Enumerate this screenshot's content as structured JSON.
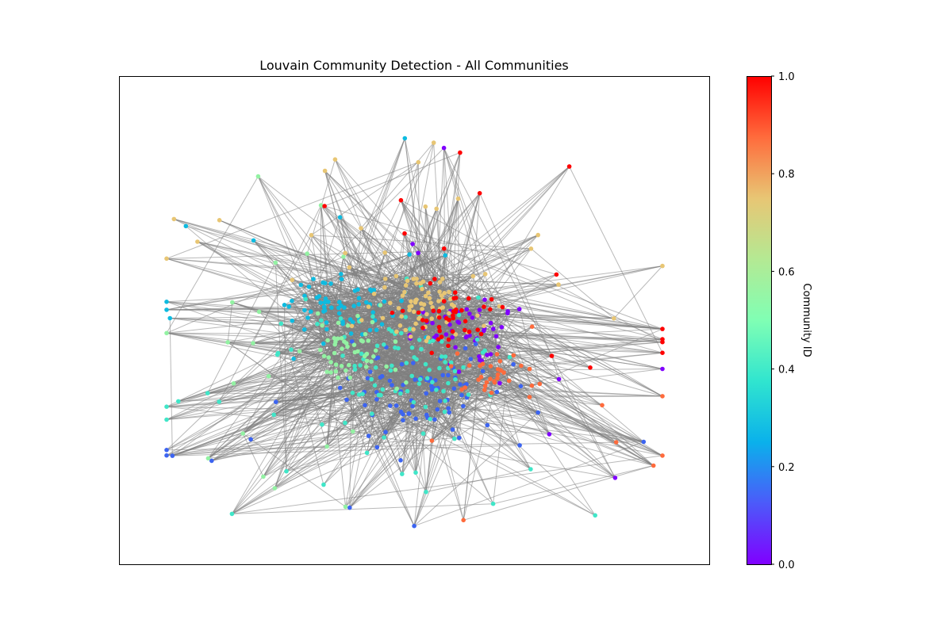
{
  "chart_data": {
    "type": "network",
    "title": "Louvain Community Detection - All Communities",
    "colorbar": {
      "label": "Community ID",
      "range": [
        0.0,
        1.0
      ],
      "ticks": [
        {
          "value": 0.0,
          "label": "0.0"
        },
        {
          "value": 0.2,
          "label": "0.2"
        },
        {
          "value": 0.4,
          "label": "0.4"
        },
        {
          "value": 0.6,
          "label": "0.6"
        },
        {
          "value": 0.8,
          "label": "0.8"
        },
        {
          "value": 1.0,
          "label": "1.0"
        }
      ],
      "colormap": "rainbow"
    },
    "edge_color": "#808080",
    "communities": [
      {
        "id": "c0",
        "value": 0.0,
        "color": "#8000ff"
      },
      {
        "id": "c1",
        "value": 0.13,
        "color": "#3c64f1"
      },
      {
        "id": "c2",
        "value": 0.27,
        "color": "#0ebbe0"
      },
      {
        "id": "c3",
        "value": 0.4,
        "color": "#40e6c8"
      },
      {
        "id": "c4",
        "value": 0.53,
        "color": "#93f2a3"
      },
      {
        "id": "c5",
        "value": 0.73,
        "color": "#e8c674"
      },
      {
        "id": "c6",
        "value": 0.87,
        "color": "#ff6b3c"
      },
      {
        "id": "c7",
        "value": 1.0,
        "color": "#ff0000"
      }
    ]
  }
}
